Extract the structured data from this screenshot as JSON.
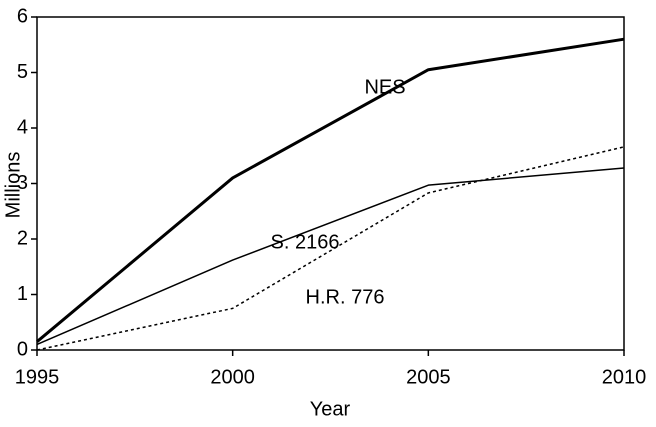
{
  "chart_data": {
    "type": "line",
    "xlabel": "Year",
    "ylabel": "Millions",
    "x": [
      1995,
      2000,
      2005,
      2010
    ],
    "xlim": [
      1995,
      2010
    ],
    "xticks": [
      1995,
      2000,
      2005,
      2010
    ],
    "ylim": [
      0,
      6
    ],
    "yticks": [
      0,
      1,
      2,
      3,
      4,
      5,
      6
    ],
    "grid": false,
    "series": [
      {
        "name": "NES",
        "color": "#000000",
        "line_style": "solid",
        "line_width": 3,
        "values": [
          0.15,
          3.1,
          5.05,
          5.6
        ]
      },
      {
        "name": "S. 2166",
        "color": "#000000",
        "line_style": "solid",
        "line_width": 1.5,
        "values": [
          0.1,
          1.62,
          2.97,
          3.28
        ]
      },
      {
        "name": "H.R. 776",
        "color": "#000000",
        "line_style": "dotted",
        "line_width": 1.5,
        "values": [
          0.0,
          0.75,
          2.83,
          3.66
        ]
      }
    ]
  }
}
